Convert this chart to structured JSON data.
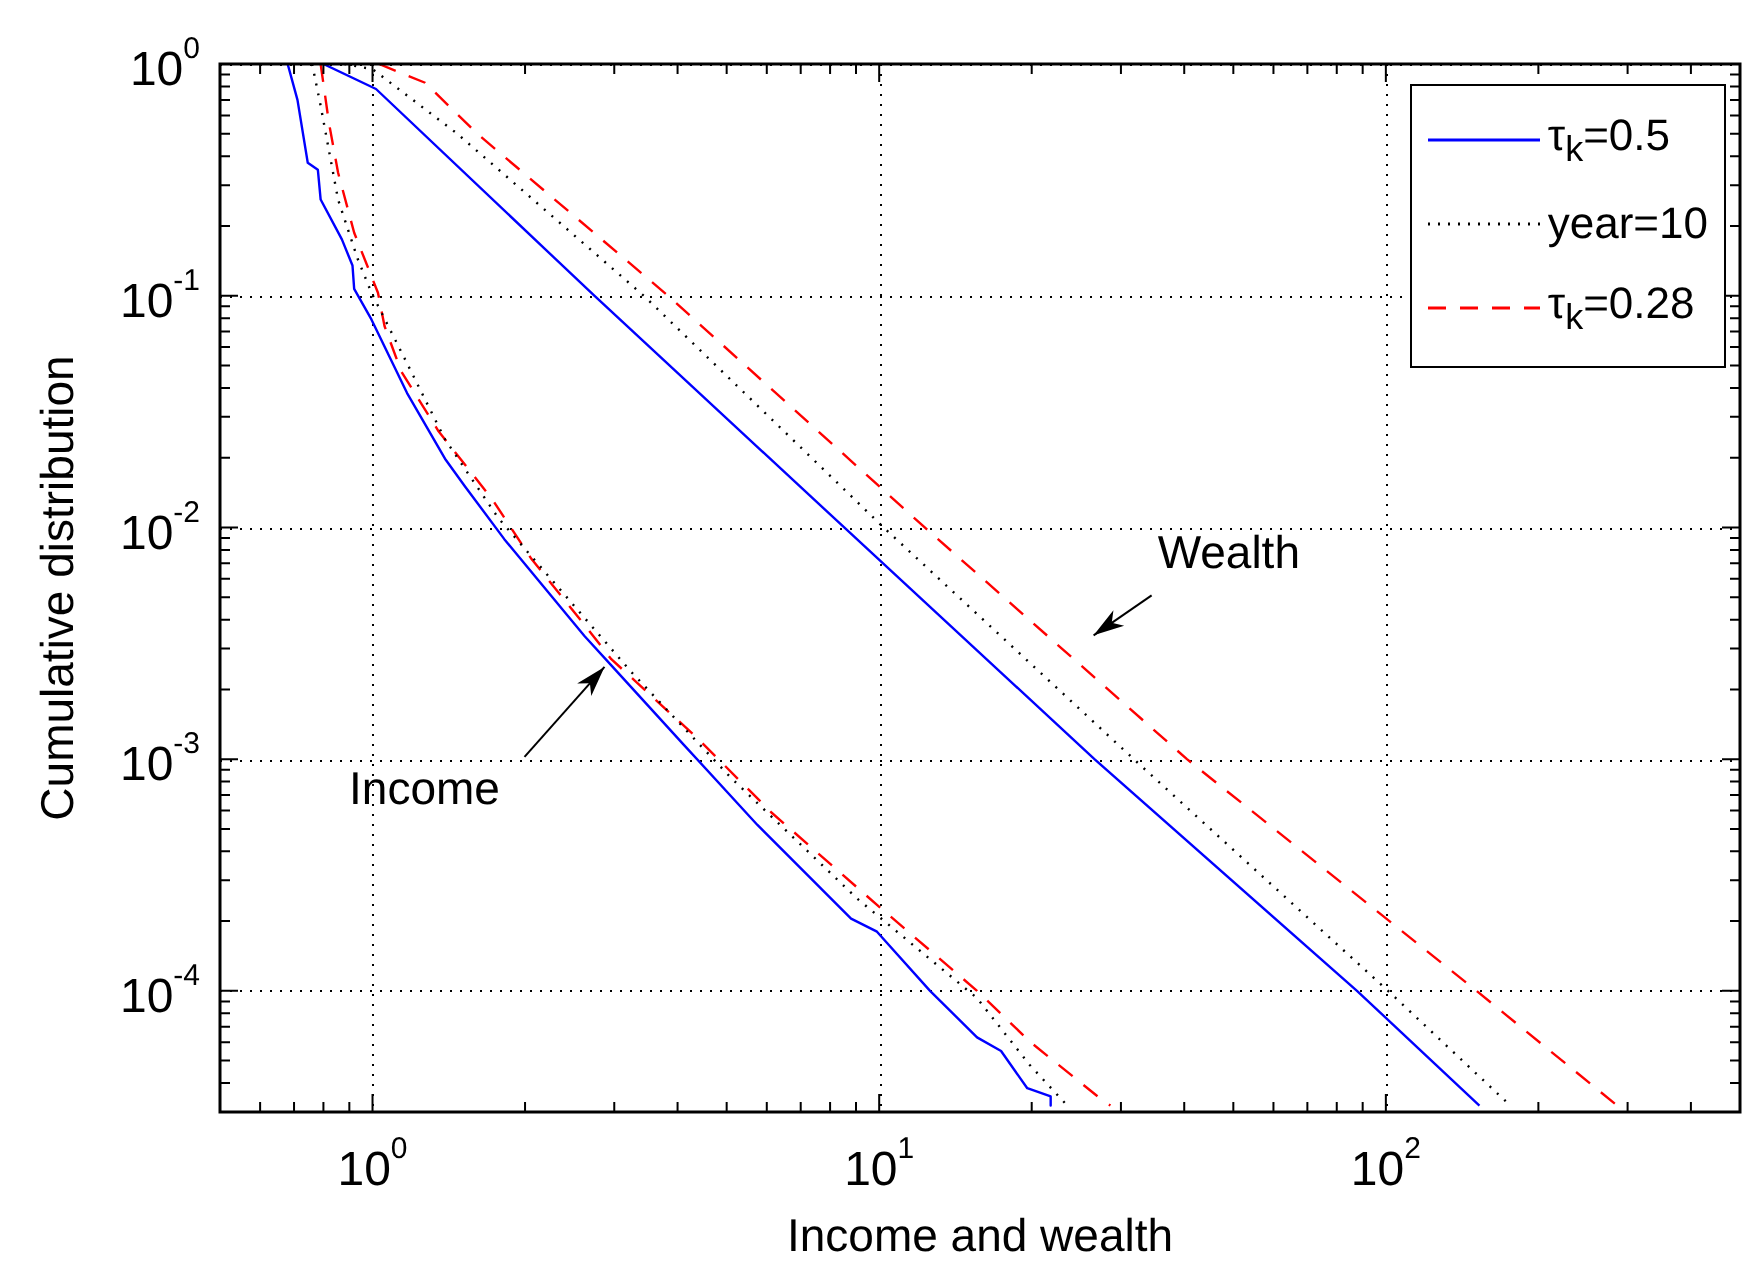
{
  "chart_data": {
    "type": "line",
    "xlabel": "Income and wealth",
    "ylabel": "Cumulative distribution",
    "log": "xy",
    "grid": true,
    "legend": "top right",
    "xlim": [
      0.5,
      500
    ],
    "ylim": [
      3e-05,
      1
    ],
    "xticks": [
      {
        "value": 0.5,
        "label": null
      },
      {
        "value": 0.6,
        "label": null
      },
      {
        "value": 0.7,
        "label": null
      },
      {
        "value": 0.8,
        "label": null
      },
      {
        "value": 0.9,
        "label": null
      },
      {
        "value": 1,
        "label": "10$^{0}$"
      },
      {
        "value": 2,
        "label": null
      },
      {
        "value": 3,
        "label": null
      },
      {
        "value": 4,
        "label": null
      },
      {
        "value": 5,
        "label": null
      },
      {
        "value": 6,
        "label": null
      },
      {
        "value": 7,
        "label": null
      },
      {
        "value": 8,
        "label": null
      },
      {
        "value": 9,
        "label": null
      },
      {
        "value": 10,
        "label": "10$^{1}$"
      },
      {
        "value": 20,
        "label": null
      },
      {
        "value": 30,
        "label": null
      },
      {
        "value": 40,
        "label": null
      },
      {
        "value": 50,
        "label": null
      },
      {
        "value": 60,
        "label": null
      },
      {
        "value": 70,
        "label": null
      },
      {
        "value": 80,
        "label": null
      },
      {
        "value": 90,
        "label": null
      },
      {
        "value": 100,
        "label": "10$^{2}$"
      },
      {
        "value": 200,
        "label": null
      },
      {
        "value": 300,
        "label": null
      },
      {
        "value": 400,
        "label": null
      },
      {
        "value": 500,
        "label": null
      }
    ],
    "yticks": [
      {
        "value": 3e-05,
        "label": null
      },
      {
        "value": 4e-05,
        "label": null
      },
      {
        "value": 5e-05,
        "label": null
      },
      {
        "value": 6e-05,
        "label": null
      },
      {
        "value": 7e-05,
        "label": null
      },
      {
        "value": 8e-05,
        "label": null
      },
      {
        "value": 9e-05,
        "label": null
      },
      {
        "value": 0.0001,
        "label": "10$^{-4}$"
      },
      {
        "value": 0.0002,
        "label": null
      },
      {
        "value": 0.0003,
        "label": null
      },
      {
        "value": 0.0004,
        "label": null
      },
      {
        "value": 0.0005,
        "label": null
      },
      {
        "value": 0.0006,
        "label": null
      },
      {
        "value": 0.0007,
        "label": null
      },
      {
        "value": 0.0008,
        "label": null
      },
      {
        "value": 0.0009,
        "label": null
      },
      {
        "value": 0.001,
        "label": "10$^{-3}$"
      },
      {
        "value": 0.002,
        "label": null
      },
      {
        "value": 0.003,
        "label": null
      },
      {
        "value": 0.004,
        "label": null
      },
      {
        "value": 0.005,
        "label": null
      },
      {
        "value": 0.006,
        "label": null
      },
      {
        "value": 0.007,
        "label": null
      },
      {
        "value": 0.008,
        "label": null
      },
      {
        "value": 0.009,
        "label": null
      },
      {
        "value": 0.01,
        "label": "10$^{-2}$"
      },
      {
        "value": 0.02,
        "label": null
      },
      {
        "value": 0.03,
        "label": null
      },
      {
        "value": 0.04,
        "label": null
      },
      {
        "value": 0.05,
        "label": null
      },
      {
        "value": 0.06,
        "label": null
      },
      {
        "value": 0.07,
        "label": null
      },
      {
        "value": 0.08,
        "label": null
      },
      {
        "value": 0.09,
        "label": null
      },
      {
        "value": 0.1,
        "label": "10$^{-1}$"
      },
      {
        "value": 0.2,
        "label": null
      },
      {
        "value": 0.3,
        "label": null
      },
      {
        "value": 0.4,
        "label": null
      },
      {
        "value": 0.5,
        "label": null
      },
      {
        "value": 0.6,
        "label": null
      },
      {
        "value": 0.7,
        "label": null
      },
      {
        "value": 0.8,
        "label": null
      },
      {
        "value": 0.9,
        "label": null
      },
      {
        "value": 1,
        "label": "10$^{0}$"
      }
    ],
    "series": [
      {
        "name": "τ$_{k}$=0.5",
        "color": "#0000ff",
        "line_style": "solid",
        "x": [
          0.8,
          1.016,
          2.74,
          8.53,
          26.6,
          87.7,
          153
        ],
        "values": [
          1,
          0.78,
          0.1,
          0.01,
          0.001,
          0.0001,
          3.2e-05
        ]
      },
      {
        "name": "year=10",
        "color": "#000000",
        "line_style": "dotted",
        "x": [
          0.88,
          1.0,
          1.47,
          3.43,
          10.2,
          31.8,
          101,
          176
        ],
        "values": [
          1,
          0.95,
          0.5,
          0.1,
          0.01,
          0.001,
          0.0001,
          3.2e-05
        ]
      },
      {
        "name": "τ$_{k}$=0.28",
        "color": "#ff0000",
        "line_style": "dashed",
        "x": [
          1.03,
          1.27,
          1.61,
          3.83,
          12.3,
          40.5,
          151,
          286
        ],
        "values": [
          1,
          0.83,
          0.5,
          0.1,
          0.01,
          0.001,
          0.0001,
          3.2e-05
        ]
      },
      {
        "color": "#0000ff",
        "line_style": "solid",
        "x": [
          0.68,
          0.711,
          0.745,
          0.78,
          0.79,
          0.87,
          0.913,
          0.92,
          0.995,
          1.17,
          1.39,
          1.52,
          1.82,
          2.62,
          2.96,
          4.12,
          5.75,
          8.8,
          9.9,
          12.6,
          15.6,
          17.4,
          19.6,
          21.8,
          21.8
        ],
        "values": [
          1,
          0.7,
          0.375,
          0.35,
          0.26,
          0.175,
          0.135,
          0.107,
          0.079,
          0.038,
          0.0198,
          0.0151,
          0.0089,
          0.0034,
          0.00254,
          0.00115,
          0.00052,
          0.000205,
          0.00018,
          0.0001,
          6.3e-05,
          5.5e-05,
          3.8e-05,
          3.5e-05,
          3.2e-05
        ]
      },
      {
        "color": "#000000",
        "line_style": "dotted",
        "x": [
          0.76,
          0.79,
          0.855,
          0.935,
          0.995,
          1.16,
          1.39,
          1.77,
          3.24,
          5.1,
          9.05,
          15.6,
          19.8,
          23.5
        ],
        "values": [
          1,
          0.66,
          0.26,
          0.144,
          0.103,
          0.053,
          0.024,
          0.011,
          0.00238,
          0.00083,
          0.00025,
          9.3e-05,
          4.8e-05,
          3.2e-05
        ]
      },
      {
        "color": "#ff0000",
        "line_style": "dashed",
        "x": [
          0.79,
          0.82,
          0.855,
          0.92,
          1.025,
          1.056,
          1.14,
          1.35,
          1.72,
          2.06,
          2.62,
          2.96,
          4.38,
          6.12,
          9.9,
          15.6,
          19.9,
          27.0,
          28.6
        ],
        "values": [
          1,
          0.56,
          0.34,
          0.187,
          0.103,
          0.074,
          0.047,
          0.026,
          0.0133,
          0.0073,
          0.0038,
          0.0027,
          0.00123,
          0.00059,
          0.000235,
          0.0001,
          6e-05,
          3.5e-05,
          3.2e-05
        ]
      }
    ],
    "annotations": [
      {
        "text": "Wealth",
        "x": 26.5,
        "y": 0.0023
      },
      {
        "text": "Income",
        "x": 2.87,
        "y": 0.0025
      }
    ]
  }
}
